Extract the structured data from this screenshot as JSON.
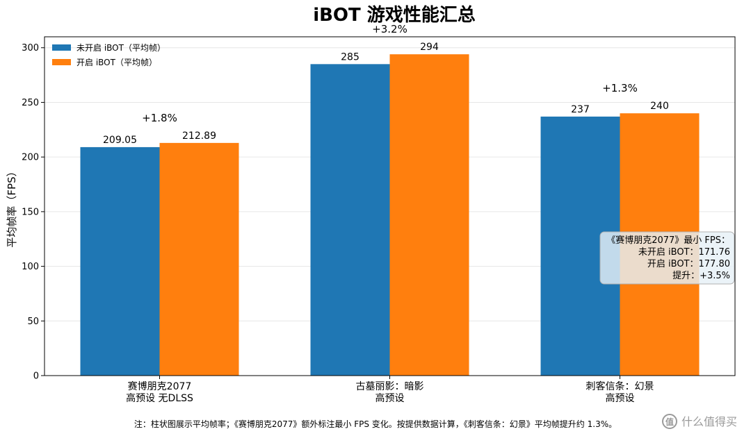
{
  "chart_data": {
    "type": "bar",
    "title": "iBOT 游戏性能汇总",
    "ylabel": "平均帧率（FPS）",
    "xlabel": "",
    "ylim": [
      0,
      310
    ],
    "yticks": [
      0,
      50,
      100,
      150,
      200,
      250,
      300
    ],
    "grid": true,
    "legend_position": "top-left",
    "categories": [
      [
        "赛博朋克2077",
        "高预设 无DLSS"
      ],
      [
        "古墓丽影：暗影",
        "高预设"
      ],
      [
        "刺客信条：幻景",
        "高预设"
      ]
    ],
    "series": [
      {
        "name": "未开启 iBOT（平均帧）",
        "color": "#1f77b4",
        "values": [
          209.05,
          285,
          237
        ],
        "labels": [
          "209.05",
          "285",
          "237"
        ]
      },
      {
        "name": "开启 iBOT（平均帧）",
        "color": "#ff7f0e",
        "values": [
          212.89,
          294,
          240
        ],
        "labels": [
          "212.89",
          "294",
          "240"
        ]
      }
    ],
    "gain_labels": [
      "+1.8%",
      "+3.2%",
      "+1.3%"
    ],
    "annotation": [
      "《赛博朋克2077》最小 FPS：",
      "未开启 iBOT：171.76",
      "开启 iBOT：177.80",
      "提升：+3.5%"
    ]
  },
  "footnote": "注：柱状图展示平均帧率；《赛博朋克2077》额外标注最小 FPS 变化。按提供数据计算，《刺客信条：幻景》平均帧提升约 1.3%。",
  "watermark": "什么值得买",
  "colors": {
    "series_1": "#1f77b4",
    "series_2": "#ff7f0e",
    "annotation_bg": "#e6f0f7",
    "annotation_border": "#b0b0b0"
  }
}
